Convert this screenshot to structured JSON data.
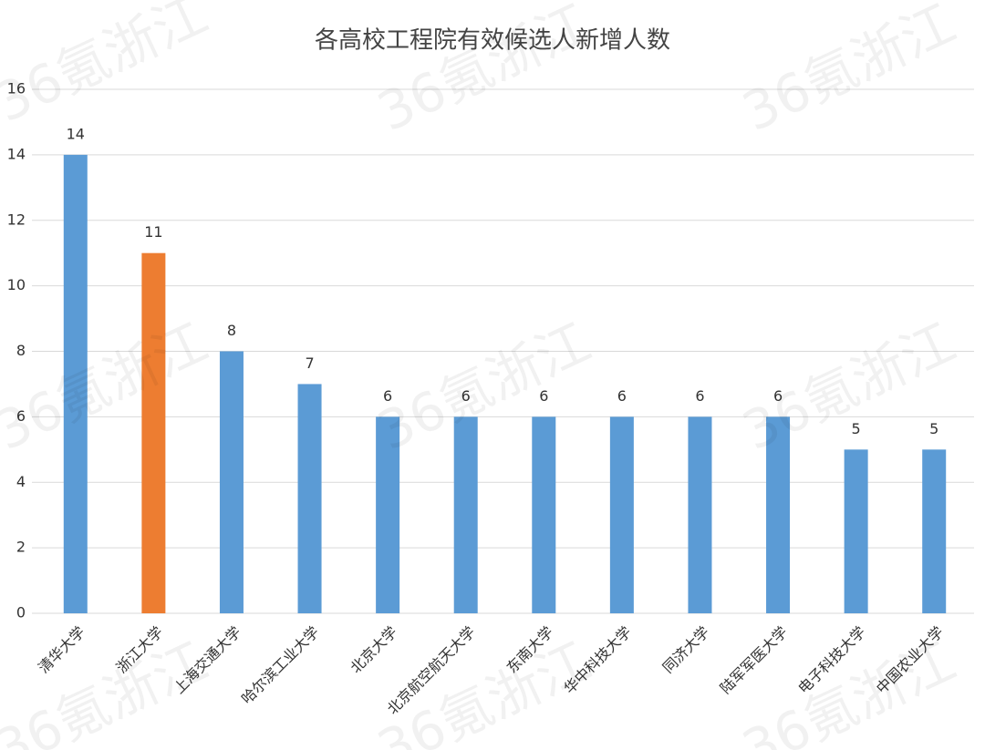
{
  "chart_data": {
    "type": "bar",
    "title": "各高校工程院有效候选人新增人数",
    "watermark": "36氪浙江",
    "categories": [
      "清华大学",
      "浙江大学",
      "上海交通大学",
      "哈尔滨工业大学",
      "北京大学",
      "北京航空航天大学",
      "东南大学",
      "华中科技大学",
      "同济大学",
      "陆军军医大学",
      "电子科技大学",
      "中国农业大学"
    ],
    "values": [
      14,
      11,
      8,
      7,
      6,
      6,
      6,
      6,
      6,
      6,
      5,
      5
    ],
    "colors": [
      "#5b9bd5",
      "#ed7d31",
      "#5b9bd5",
      "#5b9bd5",
      "#5b9bd5",
      "#5b9bd5",
      "#5b9bd5",
      "#5b9bd5",
      "#5b9bd5",
      "#5b9bd5",
      "#5b9bd5",
      "#5b9bd5"
    ],
    "ylim": [
      0,
      16
    ],
    "yticks": [
      0,
      2,
      4,
      6,
      8,
      10,
      12,
      14,
      16
    ],
    "grid": true
  }
}
